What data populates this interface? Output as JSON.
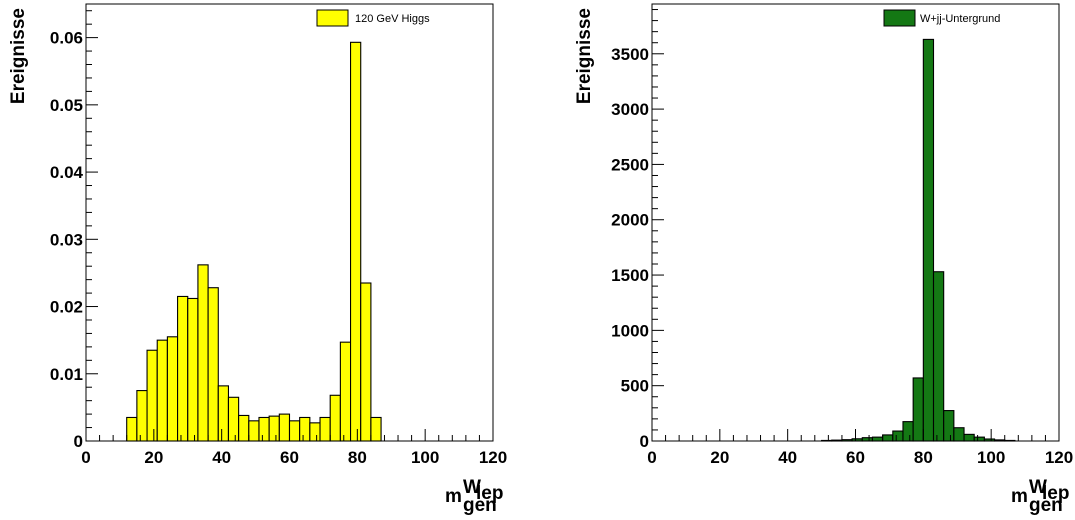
{
  "chart_data": [
    {
      "type": "bar",
      "x": [
        13.5,
        16.5,
        19.5,
        22.5,
        25.5,
        28.5,
        31.5,
        34.5,
        37.5,
        40.5,
        43.5,
        46.5,
        49.5,
        52.5,
        55.5,
        58.5,
        61.5,
        64.5,
        67.5,
        70.5,
        73.5,
        76.5,
        79.5,
        82.5,
        85.5
      ],
      "values": [
        0.0035,
        0.0075,
        0.0135,
        0.015,
        0.0155,
        0.0215,
        0.0212,
        0.0262,
        0.0228,
        0.0082,
        0.0065,
        0.0038,
        0.003,
        0.0035,
        0.0037,
        0.004,
        0.003,
        0.0035,
        0.0027,
        0.0035,
        0.0068,
        0.0147,
        0.0593,
        0.0235,
        0.0035
      ],
      "bin_width": 3,
      "xlim": [
        0,
        120
      ],
      "ylim": [
        0,
        0.065
      ],
      "xticks": [
        0,
        20,
        40,
        60,
        80,
        100,
        120
      ],
      "yticks": [
        0,
        0.01,
        0.02,
        0.03,
        0.04,
        0.05,
        0.06
      ],
      "ytick_labels": [
        "0",
        "0.01",
        "0.02",
        "0.03",
        "0.04",
        "0.05",
        "0.06"
      ],
      "xtick_labels": [
        "0",
        "20",
        "40",
        "60",
        "80",
        "100",
        "120"
      ],
      "ylabel": "Ereignisse",
      "xlabel_main": "m",
      "xlabel_sub": "gen",
      "xlabel_sup": "W",
      "xlabel_supsub": "lep",
      "legend": "120 GeV Higgs",
      "legend_position": "top-right",
      "color": "#ffff00",
      "grid": false
    },
    {
      "type": "bar",
      "x": [
        51.5,
        54.5,
        57.5,
        60.5,
        63.5,
        66.5,
        69.5,
        72.5,
        75.5,
        78.5,
        81.5,
        84.5,
        87.5,
        90.5,
        93.5,
        96.5,
        99.5,
        102.5,
        105.5
      ],
      "values": [
        5,
        8,
        12,
        20,
        30,
        35,
        55,
        90,
        175,
        570,
        3630,
        1530,
        275,
        120,
        60,
        35,
        18,
        10,
        5
      ],
      "bin_width": 3,
      "xlim": [
        0,
        120
      ],
      "ylim": [
        0,
        3950
      ],
      "xticks": [
        0,
        20,
        40,
        60,
        80,
        100,
        120
      ],
      "yticks": [
        0,
        500,
        1000,
        1500,
        2000,
        2500,
        3000,
        3500
      ],
      "ytick_labels": [
        "0",
        "500",
        "1000",
        "1500",
        "2000",
        "2500",
        "3000",
        "3500"
      ],
      "xtick_labels": [
        "0",
        "20",
        "40",
        "60",
        "80",
        "100",
        "120"
      ],
      "ylabel": "Ereignisse",
      "xlabel_main": "m",
      "xlabel_sub": "gen",
      "xlabel_sup": "W",
      "xlabel_supsub": "lep",
      "legend": "W+jj-Untergrund",
      "legend_position": "top-right",
      "color": "#147814",
      "grid": false
    }
  ]
}
